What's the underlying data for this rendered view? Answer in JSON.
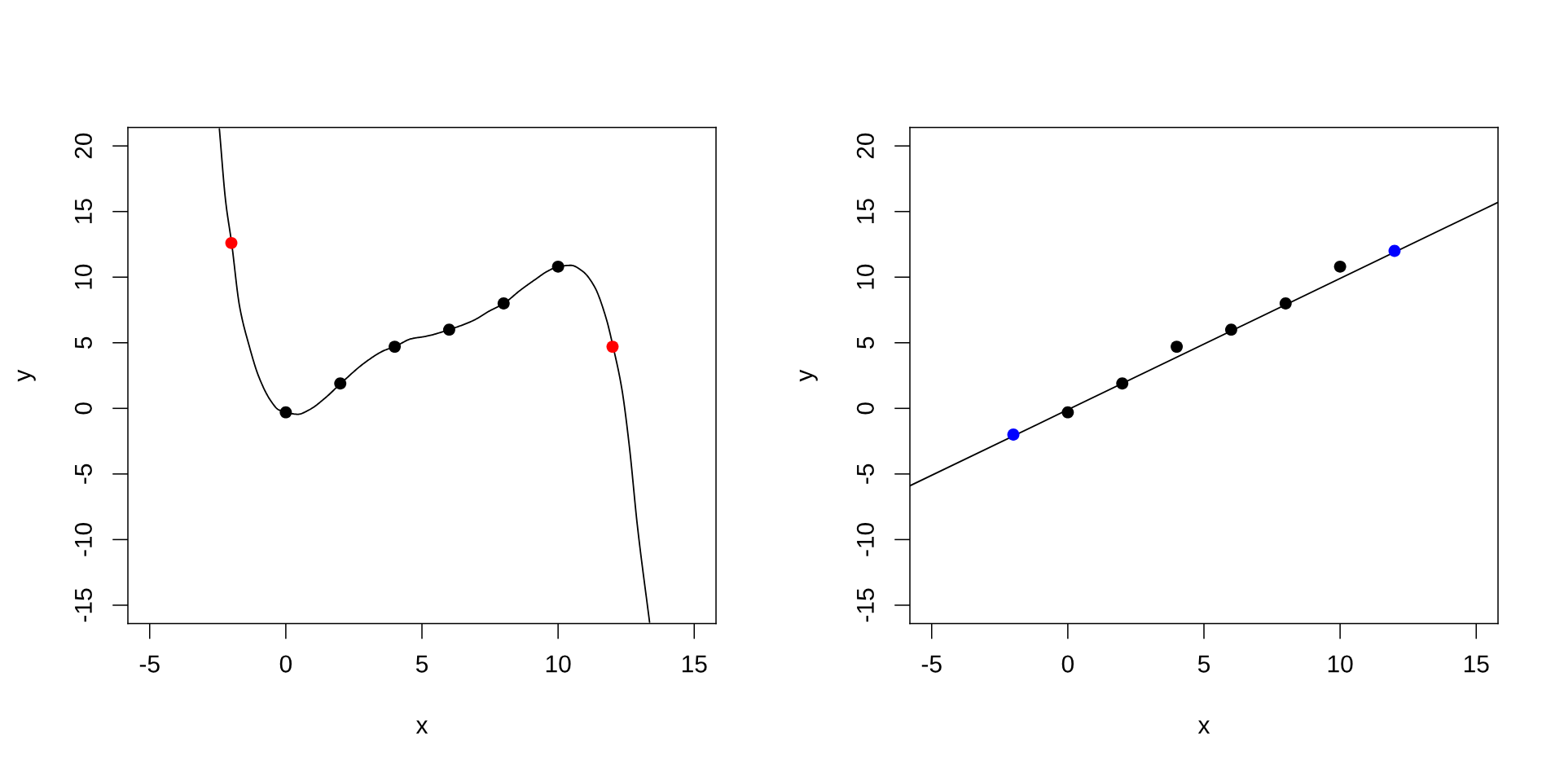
{
  "chart_data": [
    {
      "type": "scatter",
      "xlabel": "x",
      "ylabel": "y",
      "xlim": [
        -5.8,
        15.8
      ],
      "ylim": [
        -16.4,
        21.4
      ],
      "xticks": [
        {
          "value": -5,
          "label": "-5"
        },
        0,
        5,
        10,
        15
      ],
      "yticks": [
        {
          "value": -15,
          "label": "-15"
        },
        {
          "value": -10,
          "label": "-10"
        },
        {
          "value": -5,
          "label": "-5"
        },
        0,
        5,
        10,
        15,
        20
      ],
      "series": [
        {
          "type": "line",
          "color": "#000000",
          "line_style": "solid",
          "marker": "none",
          "x": [
            -2.44,
            -2.21,
            -1.99,
            -1.7,
            -1.35,
            -0.99,
            -0.56,
            -0.27,
            0,
            0.44,
            0.87,
            1.45,
            2.02,
            2.88,
            3.6,
            4.0,
            4.6,
            5.17,
            6.0,
            6.89,
            7.46,
            8.01,
            8.61,
            9.18,
            9.61,
            10.01,
            10.47,
            10.9,
            11.33,
            11.76,
            12.02,
            12.34,
            12.62,
            12.91,
            13.36
          ],
          "values": [
            21.3,
            15.8,
            12.6,
            7.8,
            4.8,
            2.4,
            0.6,
            -0.1,
            -0.3,
            -0.45,
            -0.1,
            0.8,
            1.9,
            3.45,
            4.4,
            4.7,
            5.3,
            5.5,
            6.0,
            6.7,
            7.4,
            8.0,
            9.0,
            9.85,
            10.45,
            10.8,
            10.9,
            10.45,
            9.3,
            6.9,
            4.7,
            1.5,
            -2.95,
            -8.9,
            -16.3
          ]
        },
        {
          "color": "#000000",
          "marker": "circle",
          "x": [
            0,
            2,
            4,
            6,
            8,
            10
          ],
          "values": [
            -0.3,
            1.9,
            4.7,
            6.0,
            8.0,
            10.8
          ]
        },
        {
          "color": "#ff0000",
          "marker": "circle",
          "x": [
            -2,
            12
          ],
          "values": [
            12.6,
            4.7
          ]
        }
      ]
    },
    {
      "type": "scatter",
      "xlabel": "x",
      "ylabel": "y",
      "xlim": [
        -5.8,
        15.8
      ],
      "ylim": [
        -16.4,
        21.4
      ],
      "xticks": [
        {
          "value": -5,
          "label": "-5"
        },
        0,
        5,
        10,
        15
      ],
      "yticks": [
        {
          "value": -15,
          "label": "-15"
        },
        {
          "value": -10,
          "label": "-10"
        },
        {
          "value": -5,
          "label": "-5"
        },
        0,
        5,
        10,
        15,
        20
      ],
      "series": [
        {
          "type": "line",
          "color": "#000000",
          "line_style": "solid",
          "marker": "none",
          "x": [
            -5.8,
            15.8
          ],
          "values": [
            -5.9,
            15.7
          ]
        },
        {
          "color": "#000000",
          "marker": "circle",
          "x": [
            0,
            2,
            4,
            6,
            8,
            10
          ],
          "values": [
            -0.3,
            1.9,
            4.7,
            6.0,
            8.0,
            10.8
          ]
        },
        {
          "color": "#0000ff",
          "marker": "circle",
          "x": [
            -2,
            12
          ],
          "values": [
            -2.0,
            12.0
          ]
        }
      ]
    }
  ]
}
